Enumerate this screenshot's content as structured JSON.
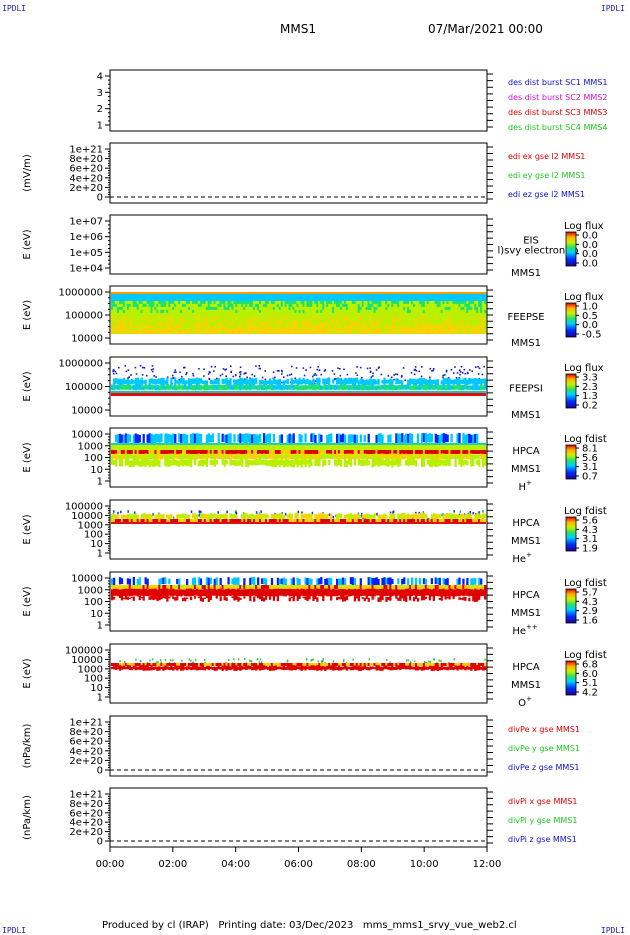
{
  "header": {
    "corner_label": "IPDLI",
    "spacecraft": "MMS1",
    "datetime": "07/Mar/2021 00:00"
  },
  "footer": {
    "text": "Produced by cl (IRAP)   Printing date: 03/Dec/2023   mms_mms1_srvy_vue_web2.cl"
  },
  "colors": {
    "blue": "#1010c8",
    "magenta": "#d010d0",
    "red": "#e00000",
    "green": "#20c820"
  },
  "chart_data": [
    {
      "type": "line",
      "id": "p1",
      "ylabel": "",
      "yticks": [
        "4",
        "3",
        "2",
        "1"
      ],
      "legend": [
        {
          "label": "des dist burst SC1 MMS1",
          "color": "#1010c8"
        },
        {
          "label": "des dist burst SC2 MMS2",
          "color": "#d010d0"
        },
        {
          "label": "des dist burst SC3 MMS3",
          "color": "#e00000"
        },
        {
          "label": "des dist burst SC4 MMS4",
          "color": "#20c820"
        }
      ]
    },
    {
      "type": "line",
      "id": "p2",
      "ylabel": "(mV/m)",
      "yticks": [
        "1e+21",
        "8e+20",
        "6e+20",
        "4e+20",
        "2e+20",
        "0"
      ],
      "legend": [
        {
          "label": "edi ex gse l2 MMS1",
          "color": "#e00000"
        },
        {
          "label": "edi ey gse l2 MMS1",
          "color": "#20c820"
        },
        {
          "label": "edi ez gse l2 MMS1",
          "color": "#1010c8"
        }
      ]
    },
    {
      "type": "heatmap",
      "id": "p3",
      "ylabel": "E (eV)",
      "yticks": [
        "1e+07",
        "1e+06",
        "1e+05",
        "1e+04"
      ],
      "instrument": "EIS",
      "instrument_extra": "l)svy electron to",
      "sc": "MMS1",
      "colorbar_title": "Log flux",
      "colorbar_ticks": [
        "0.0",
        "0.0",
        "0.0",
        "0.0"
      ]
    },
    {
      "type": "heatmap",
      "id": "p4",
      "ylabel": "E (eV)",
      "yticks": [
        "1000000",
        "100000",
        "10000"
      ],
      "instrument": "FEEPSE",
      "sc": "MMS1",
      "colorbar_title": "Log flux",
      "colorbar_ticks": [
        "1.0",
        "0.5",
        "0.0",
        "-0.5"
      ]
    },
    {
      "type": "heatmap",
      "id": "p5",
      "ylabel": "E (eV)",
      "yticks": [
        "1000000",
        "100000",
        "10000"
      ],
      "instrument": "FEEPSI",
      "sc": "MMS1",
      "colorbar_title": "Log flux",
      "colorbar_ticks": [
        "3.3",
        "2.3",
        "1.3",
        "0.2"
      ]
    },
    {
      "type": "heatmap",
      "id": "p6",
      "ylabel": "E (eV)",
      "yticks": [
        "10000",
        "1000",
        "100",
        "10",
        "1"
      ],
      "instrument": "HPCA",
      "sc": "MMS1",
      "species": "H",
      "species_sup": "+",
      "colorbar_title": "Log fdist",
      "colorbar_ticks": [
        "8.1",
        "5.6",
        "3.1",
        "0.7"
      ]
    },
    {
      "type": "heatmap",
      "id": "p7",
      "ylabel": "E (eV)",
      "yticks": [
        "100000",
        "10000",
        "1000",
        "100",
        "10",
        "1"
      ],
      "instrument": "HPCA",
      "sc": "MMS1",
      "species": "He",
      "species_sup": "+",
      "colorbar_title": "Log fdist",
      "colorbar_ticks": [
        "5.6",
        "4.3",
        "3.1",
        "1.9"
      ]
    },
    {
      "type": "heatmap",
      "id": "p8",
      "ylabel": "E (eV)",
      "yticks": [
        "10000",
        "1000",
        "100",
        "10",
        "1"
      ],
      "instrument": "HPCA",
      "sc": "MMS1",
      "species": "He",
      "species_sup": "++",
      "colorbar_title": "Log fdist",
      "colorbar_ticks": [
        "5.7",
        "4.3",
        "2.9",
        "1.6"
      ]
    },
    {
      "type": "heatmap",
      "id": "p9",
      "ylabel": "E (eV)",
      "yticks": [
        "100000",
        "10000",
        "1000",
        "100",
        "10",
        "1"
      ],
      "instrument": "HPCA",
      "sc": "MMS1",
      "species": "O",
      "species_sup": "+",
      "colorbar_title": "Log fdist",
      "colorbar_ticks": [
        "6.8",
        "6.0",
        "5.1",
        "4.2"
      ]
    },
    {
      "type": "line",
      "id": "p10",
      "ylabel": "(nPa/km)",
      "yticks": [
        "1e+21",
        "8e+20",
        "6e+20",
        "4e+20",
        "2e+20",
        "0"
      ],
      "legend": [
        {
          "label": "divPe x gse MMS1",
          "color": "#e00000"
        },
        {
          "label": "divPe y gse MMS1",
          "color": "#20c820"
        },
        {
          "label": "divPe z gse MMS1",
          "color": "#1010c8"
        }
      ]
    },
    {
      "type": "line",
      "id": "p11",
      "ylabel": "(nPa/km)",
      "yticks": [
        "1e+21",
        "8e+20",
        "6e+20",
        "4e+20",
        "2e+20",
        "0"
      ],
      "legend": [
        {
          "label": "divPi x gse MMS1",
          "color": "#e00000"
        },
        {
          "label": "divPi y gse MMS1",
          "color": "#20c820"
        },
        {
          "label": "divPi z gse MMS1",
          "color": "#1010c8"
        }
      ]
    }
  ],
  "time_axis": {
    "ticks": [
      "00:00",
      "02:00",
      "04:00",
      "06:00",
      "08:00",
      "10:00",
      "12:00"
    ]
  }
}
